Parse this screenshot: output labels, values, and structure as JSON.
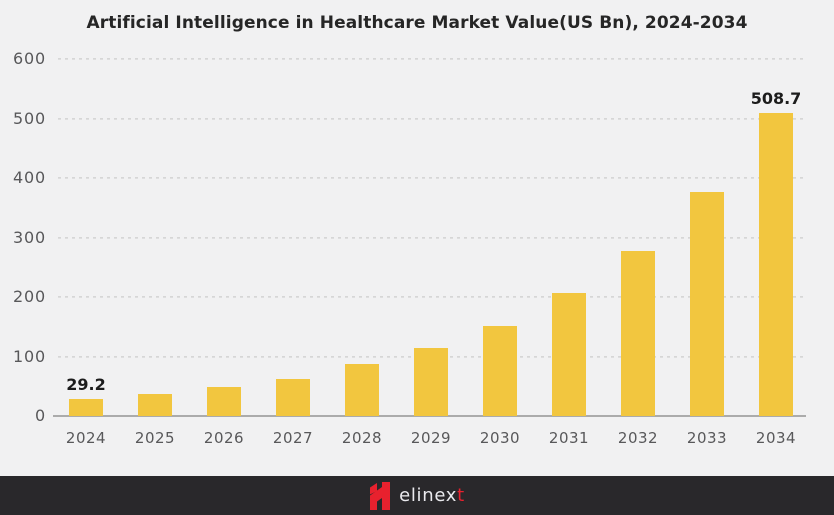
{
  "page": {
    "title": "Artificial Intelligence in Healthcare Market Value(US Bn), 2024-2034"
  },
  "chart_data": {
    "type": "bar",
    "title": "Artificial Intelligence in Healthcare Market Value(US Bn), 2024-2034",
    "categories": [
      "2024",
      "2025",
      "2026",
      "2027",
      "2028",
      "2029",
      "2030",
      "2031",
      "2032",
      "2033",
      "2034"
    ],
    "values": [
      29.2,
      37,
      48,
      63,
      87,
      114,
      151,
      207,
      277,
      377,
      508.7
    ],
    "data_labels": [
      {
        "index": 0,
        "text": "29.2"
      },
      {
        "index": 10,
        "text": "508.7"
      }
    ],
    "xlabel": "",
    "ylabel": "",
    "ylim": [
      0,
      600
    ],
    "yticks": [
      0,
      100,
      200,
      300,
      400,
      500,
      600
    ],
    "grid": "horizontal-dotted",
    "legend": "none",
    "bar_color": "#F2C63F"
  },
  "colors": {
    "background": "#F1F1F2",
    "bar": "#F2C63F",
    "title_text": "#262626",
    "axis_text": "#58585A",
    "data_label_text": "#1C1C1C",
    "gridline": "#D6D6D6",
    "baseline": "#ABABAB",
    "footer_bg": "#29282B",
    "brand_red": "#E8212E",
    "brand_text": "#EAEAEE"
  },
  "footer": {
    "brand_main": "elinex",
    "brand_accent": "t"
  }
}
